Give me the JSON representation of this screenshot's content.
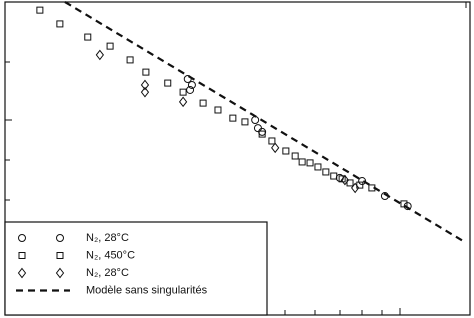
{
  "chart_data": {
    "type": "scatter",
    "xlim": [
      0,
      100
    ],
    "ylim": [
      0,
      100
    ],
    "series": [
      {
        "name": "N₂, 28°C",
        "marker": "circle",
        "color": "#111111",
        "x": [
          39.3,
          40.2,
          39.8,
          53.8,
          54.4,
          55.3,
          72.0,
          76.8,
          81.7,
          86.6
        ],
        "y": [
          75.4,
          73.5,
          71.9,
          62.3,
          59.7,
          58.5,
          43.8,
          42.8,
          38.0,
          34.8
        ]
      },
      {
        "name": "N₂, 450°C",
        "marker": "square",
        "color": "#111111",
        "x": [
          7.5,
          11.8,
          17.8,
          22.6,
          26.9,
          30.3,
          35.0,
          38.3,
          42.6,
          45.8,
          49.0,
          51.6,
          55.3,
          57.4,
          60.4,
          62.4,
          63.9,
          65.6,
          67.3,
          69.0,
          70.7,
          72.5,
          74.2,
          76.3,
          78.9,
          85.8
        ],
        "y": [
          97.4,
          93.0,
          88.8,
          85.9,
          81.5,
          77.6,
          74.1,
          71.2,
          67.7,
          65.5,
          62.9,
          61.7,
          57.8,
          55.6,
          52.4,
          50.8,
          48.9,
          48.6,
          47.3,
          45.7,
          44.4,
          43.5,
          42.2,
          41.5,
          40.6,
          35.5
        ]
      },
      {
        "name": "N₂, 28°C",
        "marker": "diamond",
        "color": "#111111",
        "x": [
          20.4,
          30.1,
          30.1,
          38.3,
          58.1,
          73.1,
          75.3
        ],
        "y": [
          83.1,
          73.5,
          71.2,
          68.1,
          53.4,
          43.1,
          40.6
        ]
      },
      {
        "name": "Modèle sans singularités",
        "marker": "dashed-line",
        "color": "#111111",
        "x": [
          12.9,
          98.9
        ],
        "y": [
          100,
          23.3
        ]
      }
    ]
  }
}
